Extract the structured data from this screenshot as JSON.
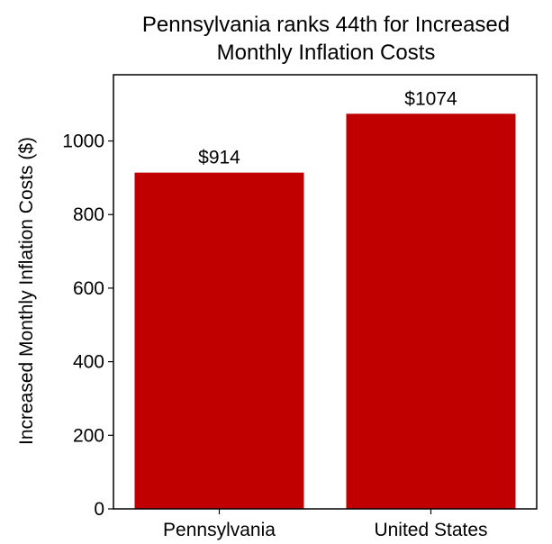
{
  "chart_data": {
    "type": "bar",
    "title_lines": [
      "Pennsylvania ranks 44th for Increased",
      "Monthly Inflation Costs"
    ],
    "ylabel": "Increased Monthly Inflation Costs ($)",
    "xlabel": "",
    "categories": [
      "Pennsylvania",
      "United States"
    ],
    "values": [
      914,
      1074
    ],
    "data_labels": [
      "$914",
      "$1074"
    ],
    "ylim": [
      0,
      1180
    ],
    "yticks": [
      0,
      200,
      400,
      600,
      800,
      1000
    ],
    "ytick_labels": [
      "0",
      "200",
      "400",
      "600",
      "800",
      "1000"
    ],
    "grid": false,
    "bar_color": "#c00000",
    "axis_color": "#000000"
  }
}
